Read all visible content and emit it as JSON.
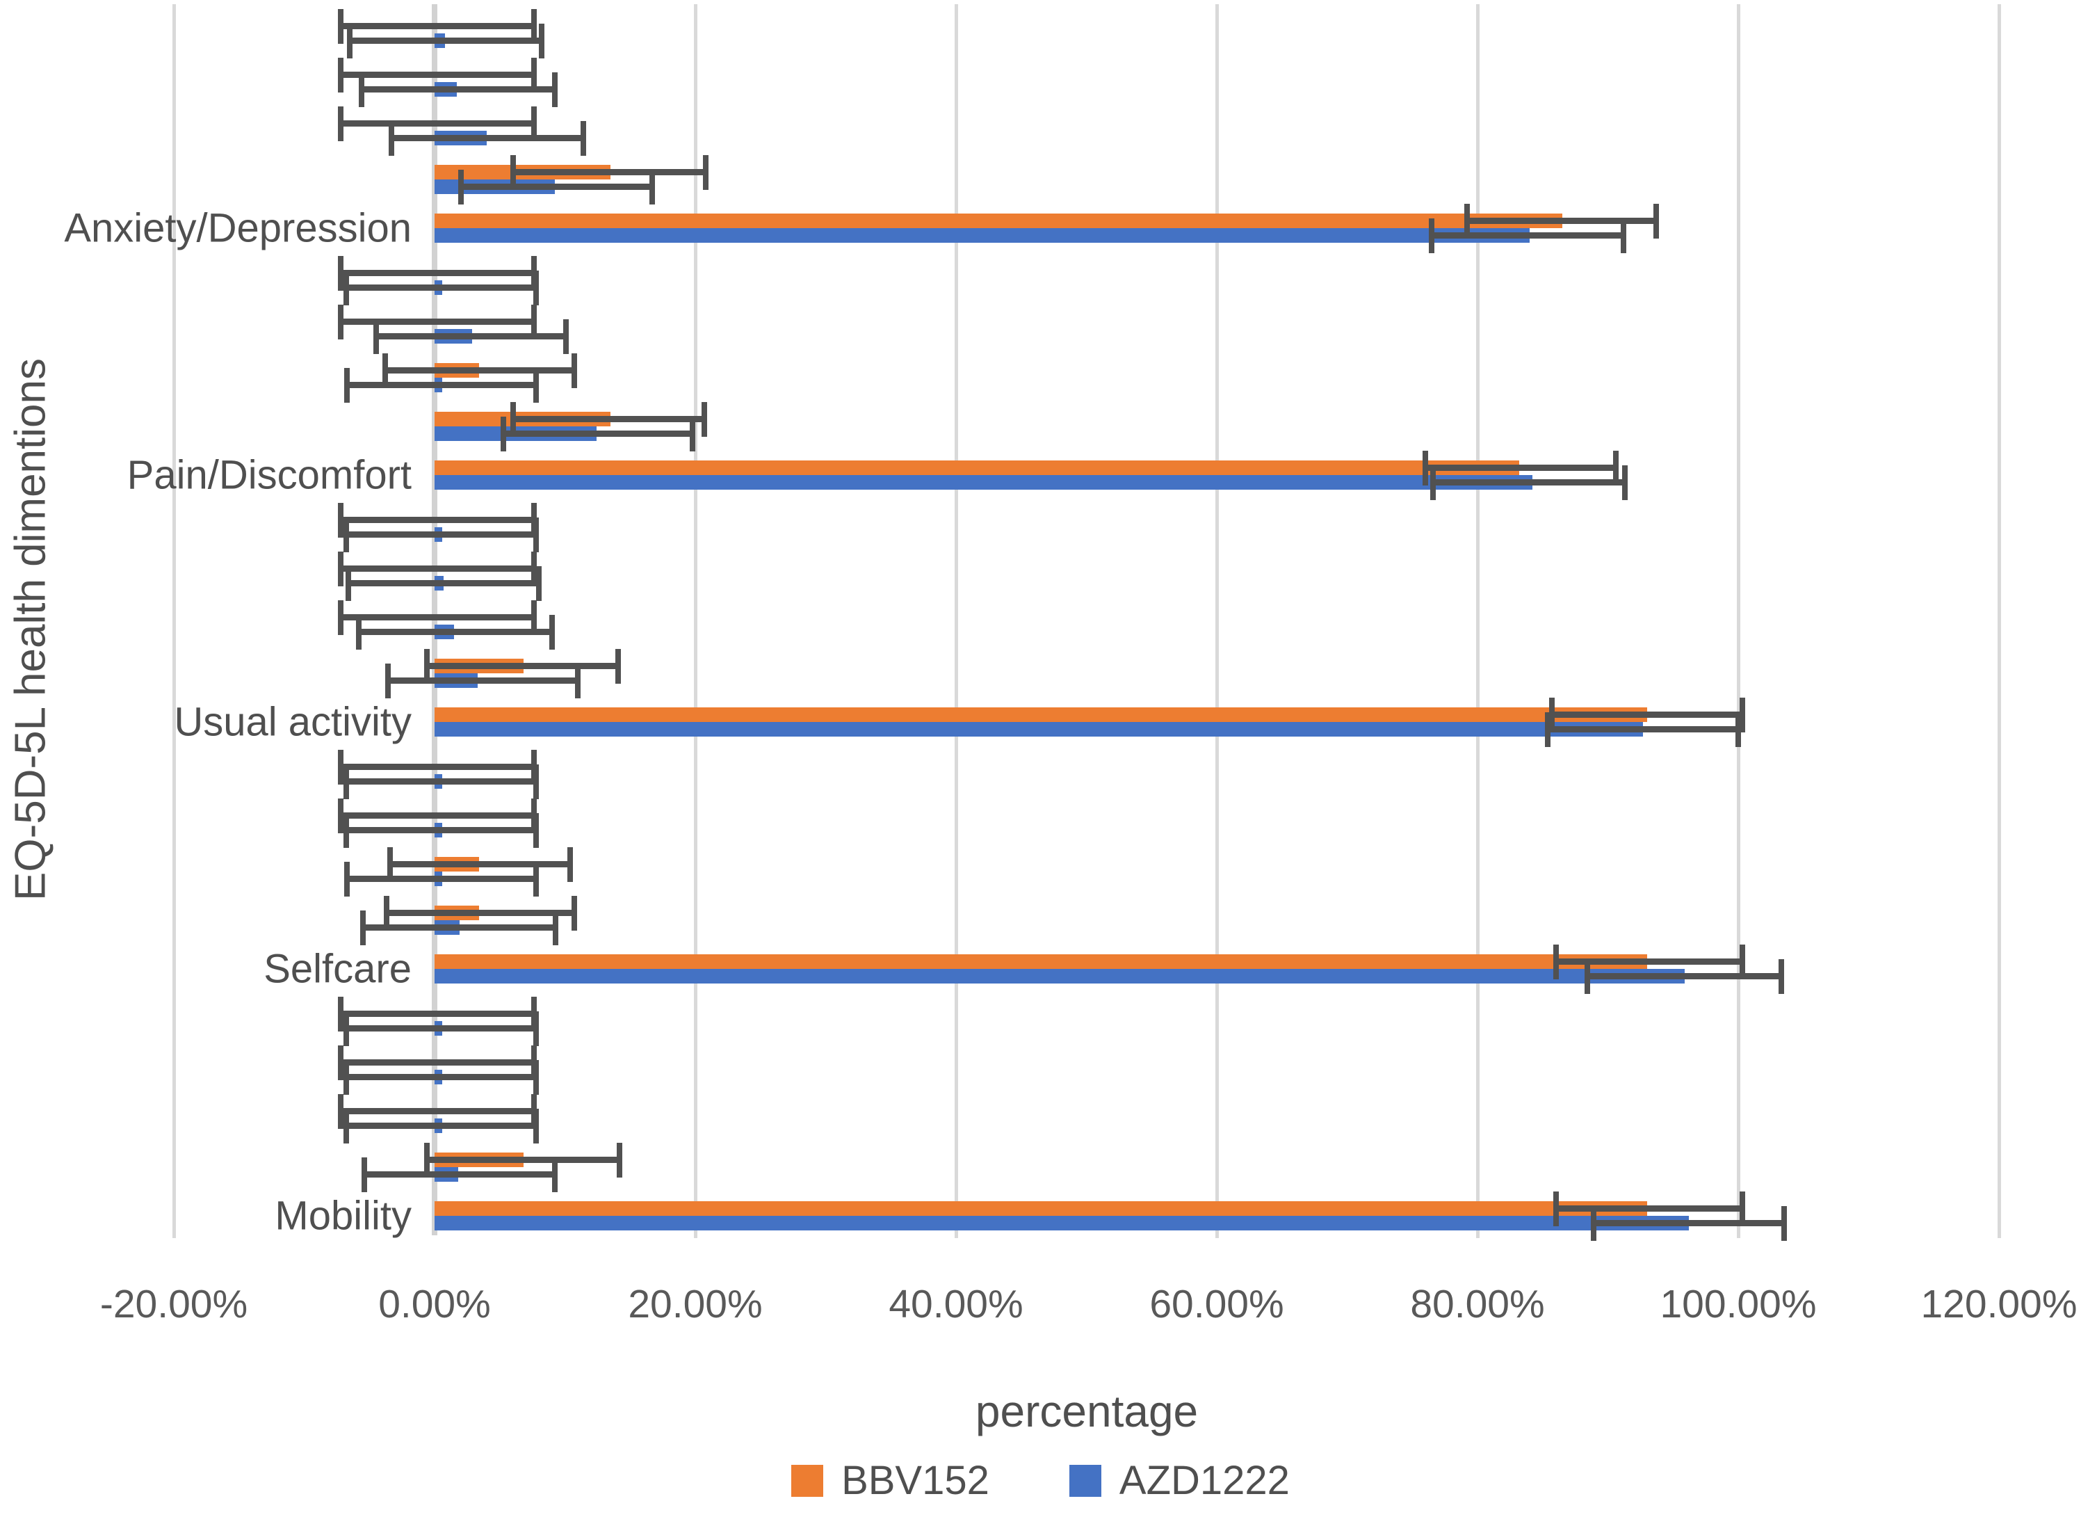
{
  "chart_data": {
    "type": "bar",
    "orientation": "horizontal",
    "title": "",
    "xlabel": "percentage",
    "ylabel": "EQ-5D-5L health dimentions",
    "xlim": [
      -20,
      120
    ],
    "grid": "vertical-only",
    "legend_position": "bottom-center",
    "x_ticks": [
      {
        "value": -20,
        "label": "-20.00%"
      },
      {
        "value": 0,
        "label": "0.00%"
      },
      {
        "value": 20,
        "label": "20.00%"
      },
      {
        "value": 40,
        "label": "40.00%"
      },
      {
        "value": 60,
        "label": "60.00%"
      },
      {
        "value": 80,
        "label": "80.00%"
      },
      {
        "value": 100,
        "label": "100.00%"
      },
      {
        "value": 120,
        "label": "120.00%"
      }
    ],
    "series": [
      {
        "name": "BBV152",
        "color": "#ED7D31"
      },
      {
        "name": "AZD1222",
        "color": "#4472C4"
      }
    ],
    "error_bars": true,
    "error_bar_color": "#515151",
    "categories_top_to_bottom": [
      {
        "label": "Anxiety/Depression",
        "rows": [
          {
            "BBV152": {
              "value": 0.0,
              "ci_low": -7.2,
              "ci_high": 7.6
            },
            "AZD1222": {
              "value": 0.8,
              "ci_low": -6.5,
              "ci_high": 8.2
            }
          },
          {
            "BBV152": {
              "value": 0.0,
              "ci_low": -7.2,
              "ci_high": 7.6
            },
            "AZD1222": {
              "value": 1.7,
              "ci_low": -5.6,
              "ci_high": 9.2
            }
          },
          {
            "BBV152": {
              "value": 0.0,
              "ci_low": -7.2,
              "ci_high": 7.6
            },
            "AZD1222": {
              "value": 4.0,
              "ci_low": -3.3,
              "ci_high": 11.4
            }
          },
          {
            "BBV152": {
              "value": 13.5,
              "ci_low": 6.0,
              "ci_high": 20.8
            },
            "AZD1222": {
              "value": 9.2,
              "ci_low": 2.0,
              "ci_high": 16.7
            }
          },
          {
            "BBV152": {
              "value": 86.5,
              "ci_low": 79.2,
              "ci_high": 93.7
            },
            "AZD1222": {
              "value": 84.0,
              "ci_low": 76.5,
              "ci_high": 91.2
            }
          }
        ]
      },
      {
        "label": "Pain/Discomfort",
        "rows": [
          {
            "BBV152": {
              "value": 0.0,
              "ci_low": -7.2,
              "ci_high": 7.6
            },
            "AZD1222": {
              "value": 0.6,
              "ci_low": -6.8,
              "ci_high": 7.8
            }
          },
          {
            "BBV152": {
              "value": 0.0,
              "ci_low": -7.2,
              "ci_high": 7.6
            },
            "AZD1222": {
              "value": 2.9,
              "ci_low": -4.5,
              "ci_high": 10.1
            }
          },
          {
            "BBV152": {
              "value": 3.4,
              "ci_low": -3.8,
              "ci_high": 10.7
            },
            "AZD1222": {
              "value": 0.6,
              "ci_low": -6.7,
              "ci_high": 7.8
            }
          },
          {
            "BBV152": {
              "value": 13.5,
              "ci_low": 6.0,
              "ci_high": 20.7
            },
            "AZD1222": {
              "value": 12.4,
              "ci_low": 5.3,
              "ci_high": 19.8
            }
          },
          {
            "BBV152": {
              "value": 83.2,
              "ci_low": 76.0,
              "ci_high": 90.6
            },
            "AZD1222": {
              "value": 84.2,
              "ci_low": 76.6,
              "ci_high": 91.3
            }
          }
        ]
      },
      {
        "label": "Usual activity",
        "rows": [
          {
            "BBV152": {
              "value": 0.0,
              "ci_low": -7.2,
              "ci_high": 7.6
            },
            "AZD1222": {
              "value": 0.6,
              "ci_low": -6.8,
              "ci_high": 7.8
            }
          },
          {
            "BBV152": {
              "value": 0.0,
              "ci_low": -7.2,
              "ci_high": 7.6
            },
            "AZD1222": {
              "value": 0.7,
              "ci_low": -6.6,
              "ci_high": 8.0
            }
          },
          {
            "BBV152": {
              "value": 0.0,
              "ci_low": -7.2,
              "ci_high": 7.6
            },
            "AZD1222": {
              "value": 1.5,
              "ci_low": -5.8,
              "ci_high": 9.0
            }
          },
          {
            "BBV152": {
              "value": 6.8,
              "ci_low": -0.6,
              "ci_high": 14.1
            },
            "AZD1222": {
              "value": 3.3,
              "ci_low": -3.6,
              "ci_high": 11.0
            }
          },
          {
            "BBV152": {
              "value": 93.0,
              "ci_low": 85.7,
              "ci_high": 100.3
            },
            "AZD1222": {
              "value": 92.7,
              "ci_low": 85.4,
              "ci_high": 100.0
            }
          }
        ]
      },
      {
        "label": "Selfcare",
        "rows": [
          {
            "BBV152": {
              "value": 0.0,
              "ci_low": -7.2,
              "ci_high": 7.6
            },
            "AZD1222": {
              "value": 0.6,
              "ci_low": -6.8,
              "ci_high": 7.8
            }
          },
          {
            "BBV152": {
              "value": 0.0,
              "ci_low": -7.2,
              "ci_high": 7.6
            },
            "AZD1222": {
              "value": 0.6,
              "ci_low": -6.8,
              "ci_high": 7.8
            }
          },
          {
            "BBV152": {
              "value": 3.4,
              "ci_low": -3.4,
              "ci_high": 10.4
            },
            "AZD1222": {
              "value": 0.6,
              "ci_low": -6.7,
              "ci_high": 7.8
            }
          },
          {
            "BBV152": {
              "value": 3.4,
              "ci_low": -3.7,
              "ci_high": 10.7
            },
            "AZD1222": {
              "value": 1.9,
              "ci_low": -5.5,
              "ci_high": 9.3
            }
          },
          {
            "BBV152": {
              "value": 93.0,
              "ci_low": 86.0,
              "ci_high": 100.3
            },
            "AZD1222": {
              "value": 95.9,
              "ci_low": 88.4,
              "ci_high": 103.3
            }
          }
        ]
      },
      {
        "label": "Mobility",
        "rows": [
          {
            "BBV152": {
              "value": 0.0,
              "ci_low": -7.2,
              "ci_high": 7.6
            },
            "AZD1222": {
              "value": 0.6,
              "ci_low": -6.8,
              "ci_high": 7.8
            }
          },
          {
            "BBV152": {
              "value": 0.0,
              "ci_low": -7.2,
              "ci_high": 7.6
            },
            "AZD1222": {
              "value": 0.6,
              "ci_low": -6.8,
              "ci_high": 7.8
            }
          },
          {
            "BBV152": {
              "value": 0.0,
              "ci_low": -7.2,
              "ci_high": 7.6
            },
            "AZD1222": {
              "value": 0.6,
              "ci_low": -6.8,
              "ci_high": 7.8
            }
          },
          {
            "BBV152": {
              "value": 6.8,
              "ci_low": -0.6,
              "ci_high": 14.2
            },
            "AZD1222": {
              "value": 1.8,
              "ci_low": -5.4,
              "ci_high": 9.2
            }
          },
          {
            "BBV152": {
              "value": 93.0,
              "ci_low": 86.0,
              "ci_high": 100.3
            },
            "AZD1222": {
              "value": 96.2,
              "ci_low": 88.9,
              "ci_high": 103.5
            }
          }
        ]
      }
    ]
  },
  "colors": {
    "background": "#ffffff",
    "gridline": "#D9D9D9",
    "zero_axis": "#D2D2D2",
    "text": "#4f4f4f",
    "tick_text": "#595959"
  }
}
